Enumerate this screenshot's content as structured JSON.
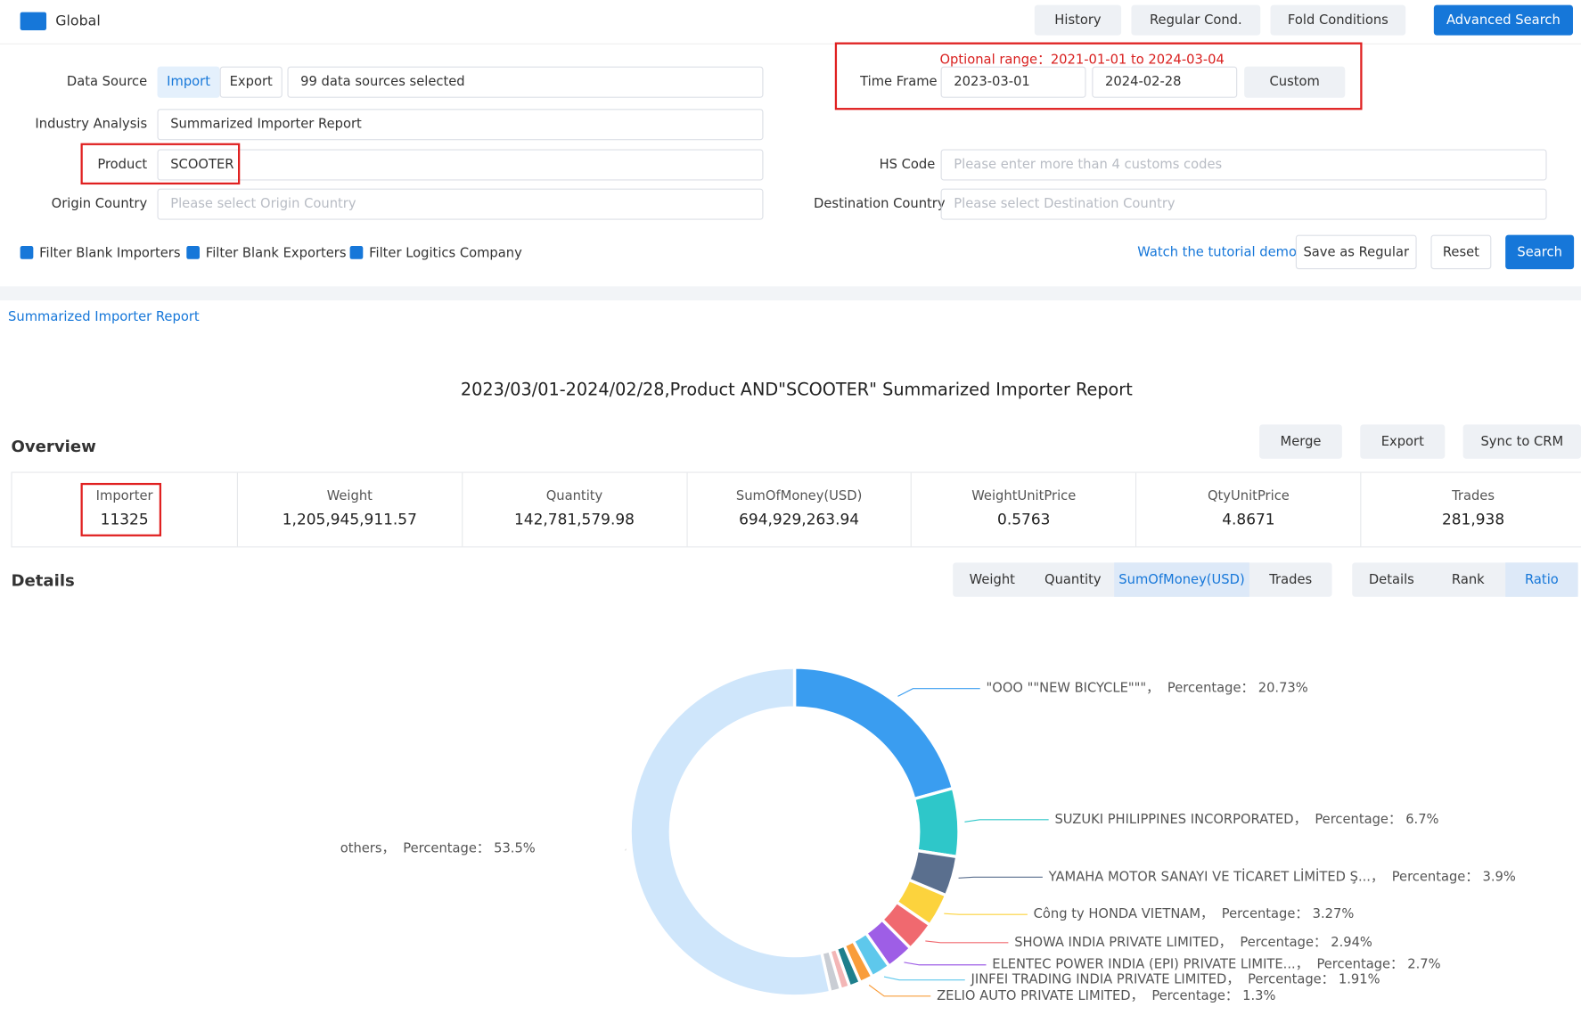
{
  "header": {
    "scope": "Global",
    "buttons": [
      "History",
      "Regular Cond.",
      "Fold Conditions",
      "Advanced Search"
    ]
  },
  "form": {
    "data_source": {
      "label": "Data Source",
      "options": [
        "Import",
        "Export"
      ],
      "value": "99 data sources selected"
    },
    "optional_range": {
      "label": "Optional range：",
      "value": "2021-01-01 to 2024-03-04"
    },
    "time_frame": {
      "label": "Time Frame",
      "start": "2023-03-01",
      "end": "2024-02-28",
      "button": "Custom"
    },
    "industry_analysis": {
      "label": "Industry Analysis",
      "value": "Summarized Importer Report"
    },
    "product": {
      "label": "Product",
      "value": "SCOOTER"
    },
    "hs_code": {
      "label": "HS Code",
      "placeholder": "Please enter more than 4 customs codes"
    },
    "origin_country": {
      "label": "Origin Country",
      "placeholder": "Please select Origin Country"
    },
    "destination_country": {
      "label": "Destination Country",
      "placeholder": "Please select Destination Country"
    },
    "filters": [
      "Filter Blank Importers",
      "Filter Blank Exporters",
      "Filter Logitics Company"
    ],
    "actions": [
      "Watch the tutorial demo",
      "Save as Regular",
      "Reset",
      "Search"
    ]
  },
  "tab": "Summarized Importer Report",
  "report_title": "2023/03/01-2024/02/28,Product AND\"SCOOTER\" Summarized Importer Report",
  "overview": {
    "title": "Overview",
    "buttons": [
      "Merge",
      "Export",
      "Sync to CRM"
    ],
    "stats": [
      {
        "label": "Importer",
        "value": "11325"
      },
      {
        "label": "Weight",
        "value": "1,205,945,911.57"
      },
      {
        "label": "Quantity",
        "value": "142,781,579.98"
      },
      {
        "label": "SumOfMoney(USD)",
        "value": "694,929,263.94"
      },
      {
        "label": "WeightUnitPrice",
        "value": "0.5763"
      },
      {
        "label": "QtyUnitPrice",
        "value": "4.8671"
      },
      {
        "label": "Trades",
        "value": "281,938"
      }
    ]
  },
  "details": {
    "title": "Details",
    "metrics": [
      "Weight",
      "Quantity",
      "SumOfMoney(USD)",
      "Trades"
    ],
    "active_metric": 2,
    "views": [
      "Details",
      "Rank",
      "Ratio"
    ],
    "active_view": 2
  },
  "chart_data": {
    "type": "pie",
    "donut": true,
    "separator": "，",
    "percentage_label": "Percentage：",
    "categories": [
      "\"OOO \"\"NEW BICYCLE\"\"\"",
      "SUZUKI PHILIPPINES INCORPORATED",
      "YAMAHA MOTOR SANAYI VE TİCARET LİMİTED Ş...",
      "Công ty HONDA VIETNAM",
      "SHOWA INDIA PRIVATE LIMITED",
      "ELENTEC POWER INDIA (EPI) PRIVATE LIMITE...",
      "JINFEI TRADING INDIA PRIVATE LIMITED",
      "ZELIO AUTO PRIVATE LIMITED",
      null,
      null,
      null,
      "others"
    ],
    "values": [
      20.73,
      6.7,
      3.9,
      3.27,
      2.94,
      2.7,
      1.91,
      1.3,
      1.1,
      0.9,
      1.05,
      53.5
    ],
    "value_labels": [
      "20.73%",
      "6.7%",
      "3.9%",
      "3.27%",
      "2.94%",
      "2.7%",
      "1.91%",
      "1.3%",
      null,
      null,
      null,
      "53.5%"
    ],
    "colors": [
      "#3a9df0",
      "#2ec7c9",
      "#5a6f8e",
      "#fcd33d",
      "#f0696f",
      "#9e5ee6",
      "#5ec8ec",
      "#f99d3b",
      "#1e7f8c",
      "#f3b6b6",
      "#c9cdd4",
      "#cfe6fb"
    ]
  }
}
